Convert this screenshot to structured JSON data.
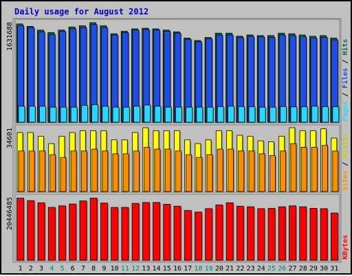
{
  "chart_data": {
    "type": "bar",
    "title": "Daily usage for August 2012",
    "categories": [
      "1",
      "2",
      "3",
      "4",
      "5",
      "6",
      "7",
      "8",
      "9",
      "10",
      "11",
      "12",
      "13",
      "14",
      "15",
      "16",
      "17",
      "18",
      "19",
      "20",
      "21",
      "22",
      "23",
      "24",
      "25",
      "26",
      "27",
      "28",
      "29",
      "30",
      "31"
    ],
    "weekend_days": [
      "4",
      "5",
      "11",
      "12",
      "18",
      "19",
      "25",
      "26"
    ],
    "colors": {
      "title": "#0000cc",
      "weekday_label": "#000000",
      "weekend_label": "#00806e",
      "hits": "#006b4f",
      "files": "#1f4de8",
      "pages": "#28d8ff",
      "visits": "#ffff00",
      "sites": "#ff8c00",
      "kbytes": "#ff0000",
      "label_hits": "#006b4f",
      "label_files": "#1f4de8",
      "label_pages": "#28d8ff",
      "label_visits": "#c8c800",
      "label_sites": "#ff8c00",
      "label_kbytes": "#ff0000",
      "panel": "#c0c0c0",
      "plot_bg": "#c0c0c0",
      "border": "#000000"
    },
    "panels": [
      {
        "name": "hits-files-pages",
        "ymax_label": "1631688",
        "ymax": 1631688,
        "legend": [
          {
            "text": "Pages",
            "color_key": "label_pages"
          },
          {
            "text": " / ",
            "color_key": "weekday_label"
          },
          {
            "text": "Files",
            "color_key": "label_files"
          },
          {
            "text": " / ",
            "color_key": "weekday_label"
          },
          {
            "text": "Hits",
            "color_key": "label_hits"
          }
        ],
        "series": [
          {
            "name": "Hits",
            "color_key": "hits",
            "values": [
              1600000,
              1560000,
              1500000,
              1460000,
              1500000,
              1550000,
              1570000,
              1620000,
              1570000,
              1440000,
              1480000,
              1520000,
              1530000,
              1520000,
              1500000,
              1470000,
              1370000,
              1330000,
              1380000,
              1450000,
              1450000,
              1400000,
              1420000,
              1410000,
              1410000,
              1450000,
              1440000,
              1420000,
              1400000,
              1410000,
              1370000
            ]
          },
          {
            "name": "Files",
            "color_key": "files",
            "values": [
              1570000,
              1540000,
              1470000,
              1430000,
              1480000,
              1520000,
              1540000,
              1590000,
              1540000,
              1420000,
              1460000,
              1500000,
              1510000,
              1500000,
              1480000,
              1450000,
              1350000,
              1310000,
              1360000,
              1420000,
              1420000,
              1380000,
              1400000,
              1390000,
              1380000,
              1420000,
              1410000,
              1390000,
              1370000,
              1380000,
              1340000
            ]
          },
          {
            "name": "Pages",
            "color_key": "pages",
            "values": [
              260000,
              260000,
              260000,
              245000,
              245000,
              245000,
              275000,
              285000,
              260000,
              245000,
              245000,
              260000,
              280000,
              260000,
              245000,
              245000,
              245000,
              245000,
              245000,
              255000,
              260000,
              255000,
              250000,
              245000,
              245000,
              255000,
              250000,
              250000,
              260000,
              250000,
              250000
            ]
          }
        ]
      },
      {
        "name": "visits-sites",
        "ymax_label": "34601",
        "ymax": 34601,
        "legend": [
          {
            "text": "Sites",
            "color_key": "label_sites"
          },
          {
            "text": " / ",
            "color_key": "weekday_label"
          },
          {
            "text": "Visits",
            "color_key": "label_visits"
          }
        ],
        "series": [
          {
            "name": "Visits",
            "color_key": "visits",
            "values": [
              32000,
              32000,
              30000,
              26000,
              30000,
              32000,
              33000,
              33000,
              33000,
              28000,
              28000,
              32000,
              34600,
              33000,
              33000,
              33000,
              28000,
              26000,
              28000,
              33000,
              33000,
              30500,
              30000,
              27500,
              27000,
              30000,
              34600,
              33000,
              33000,
              34000,
              29000
            ]
          },
          {
            "name": "Sites",
            "color_key": "sites",
            "values": [
              22000,
              22000,
              22000,
              20000,
              18500,
              22000,
              22000,
              23000,
              22000,
              20500,
              20500,
              22000,
              24000,
              23000,
              23000,
              22000,
              20000,
              18500,
              20000,
              23000,
              23000,
              22000,
              22000,
              20500,
              19500,
              22000,
              26000,
              24000,
              24000,
              25000,
              22000
            ]
          }
        ]
      },
      {
        "name": "kbytes",
        "ymax_label": "20446485",
        "ymax": 20446485,
        "legend": [
          {
            "text": "KBytes",
            "color_key": "label_kbytes"
          }
        ],
        "series": [
          {
            "name": "KBytes",
            "color_key": "kbytes",
            "values": [
              20100000,
              19300000,
              18600000,
              17100000,
              17600000,
              18200000,
              19200000,
              20100000,
              18500000,
              17100000,
              17100000,
              18400000,
              18700000,
              18700000,
              18100000,
              17500000,
              16100000,
              15600000,
              16700000,
              17900000,
              18600000,
              17500000,
              17300000,
              16700000,
              16800000,
              17300000,
              17600000,
              17300000,
              16800000,
              16700000,
              15300000
            ]
          }
        ]
      }
    ]
  }
}
